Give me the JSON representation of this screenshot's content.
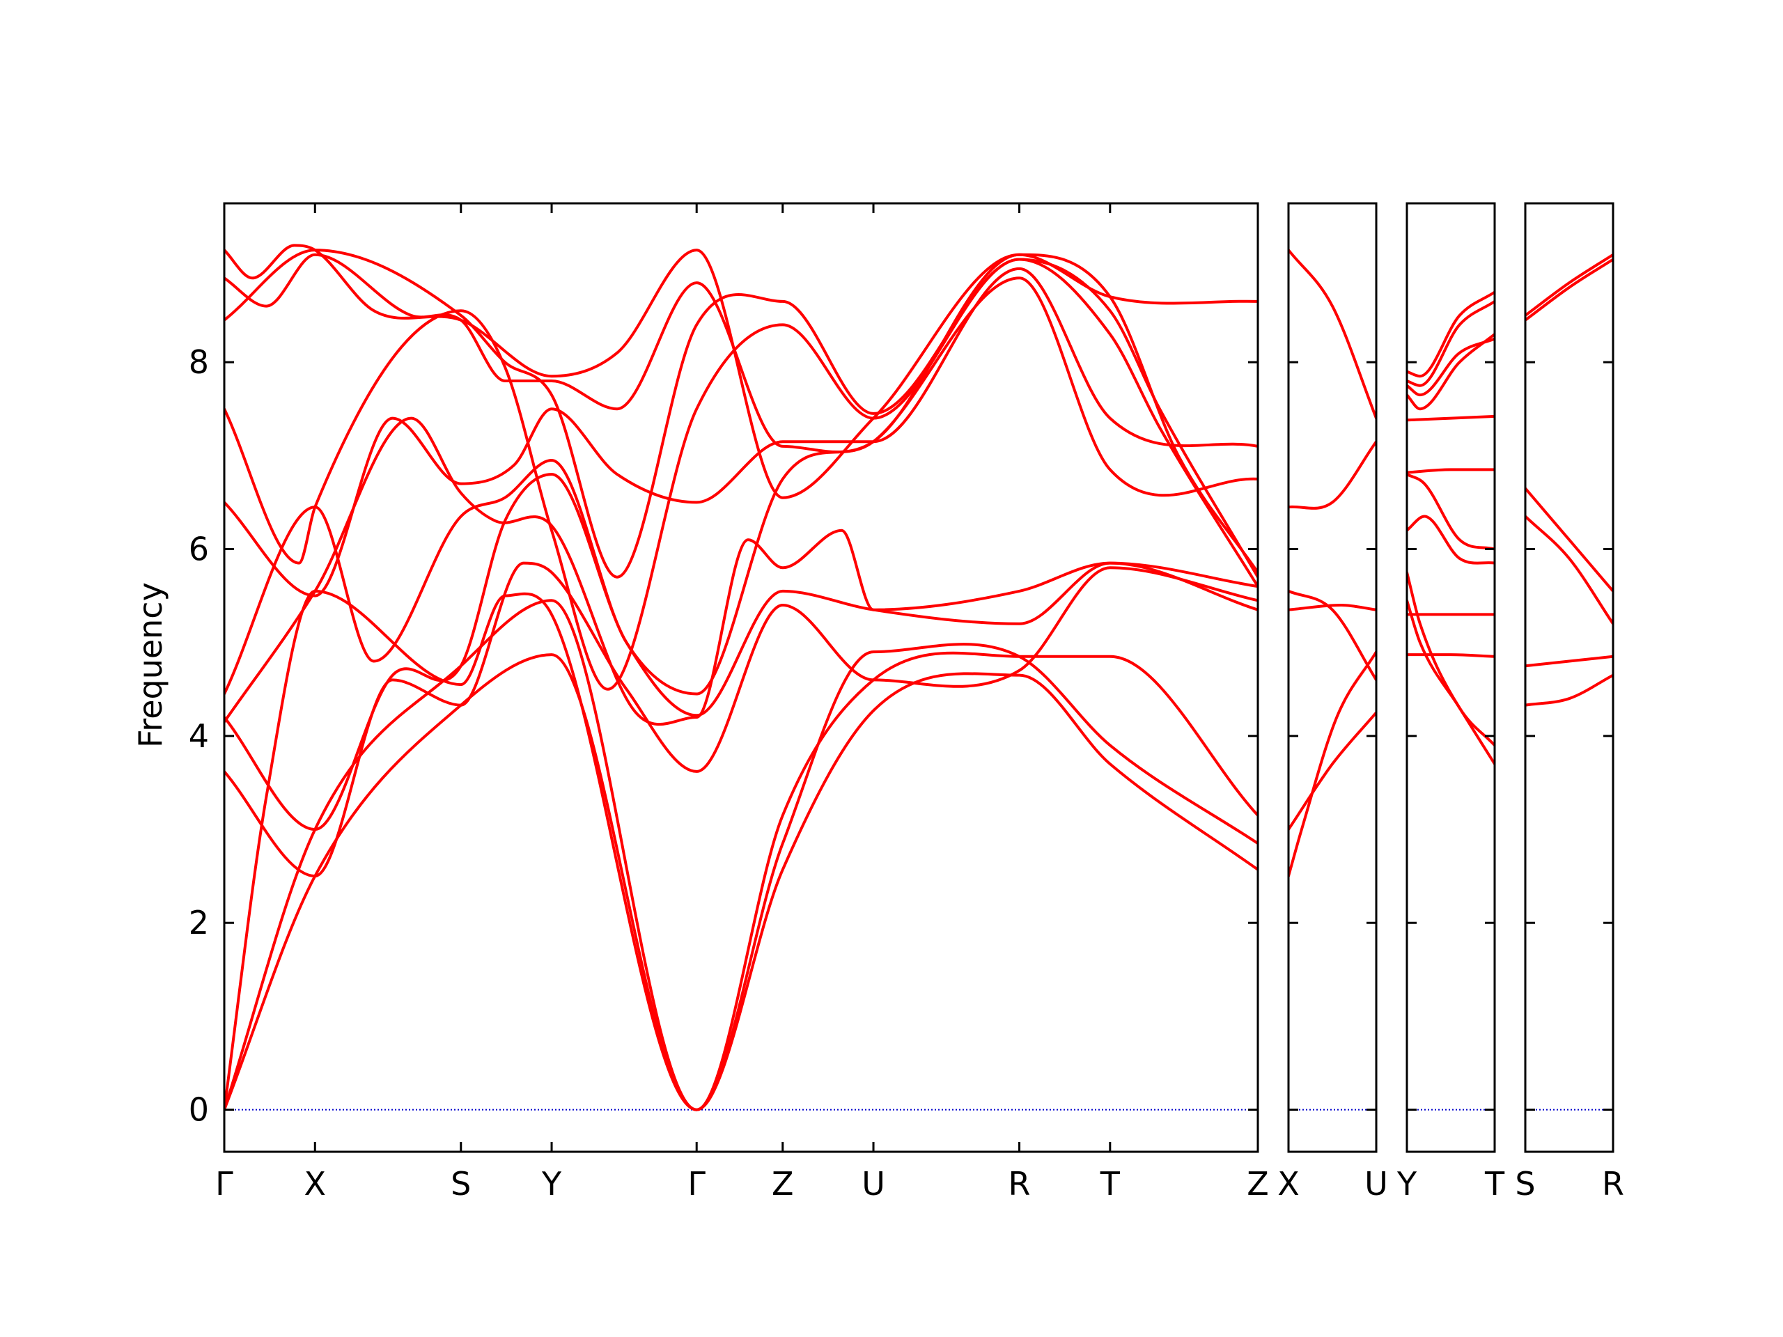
{
  "chart_data": {
    "type": "line",
    "ylabel": "Frequency",
    "ylim": [
      -0.45,
      9.7
    ],
    "yticks": [
      0,
      2,
      4,
      6,
      8
    ],
    "grid": false,
    "colors": {
      "band": "#ff0000",
      "zero_line": "#0000cc",
      "frame": "#000000"
    },
    "panels": [
      {
        "name": "main",
        "xlim": [
          0,
          11.05
        ],
        "xticks": [
          {
            "x": 0,
            "label": "Γ"
          },
          {
            "x": 0.97,
            "label": "X"
          },
          {
            "x": 2.53,
            "label": "S"
          },
          {
            "x": 3.5,
            "label": "Y"
          },
          {
            "x": 5.05,
            "label": "Γ"
          },
          {
            "x": 5.97,
            "label": "Z"
          },
          {
            "x": 6.94,
            "label": "U"
          },
          {
            "x": 8.5,
            "label": "R"
          },
          {
            "x": 9.47,
            "label": "T"
          },
          {
            "x": 11.05,
            "label": "Z"
          }
        ],
        "series": [
          {
            "x": [
              0,
              0.97,
              2.53,
              3.5,
              5.05,
              5.97,
              6.94,
              8.5,
              9.47,
              11.05
            ],
            "y": [
              0,
              2.5,
              4.33,
              4.87,
              0,
              2.57,
              4.27,
              4.65,
              3.7,
              2.57
            ]
          },
          {
            "x": [
              0,
              0.97,
              2.53,
              3.5,
              5.05,
              5.97,
              6.94,
              8.5,
              9.47,
              11.05
            ],
            "y": [
              0,
              3.0,
              4.75,
              5.45,
              0,
              2.85,
              4.9,
              4.85,
              3.9,
              2.85
            ]
          },
          {
            "x": [
              0,
              0.45,
              0.97,
              2.53,
              3.0,
              3.5,
              5.05,
              5.97,
              6.94,
              8.5,
              9.47,
              11.05
            ],
            "y": [
              0,
              3.35,
              5.55,
              4.55,
              5.5,
              5.3,
              0,
              3.15,
              4.6,
              4.85,
              4.85,
              3.15
            ]
          },
          {
            "x": [
              0,
              0.97,
              1.8,
              2.53,
              3.2,
              3.5,
              4.3,
              5.05,
              5.97,
              6.94,
              8.5,
              9.47,
              11.05
            ],
            "y": [
              3.62,
              2.5,
              4.6,
              4.33,
              5.85,
              5.75,
              4.5,
              3.62,
              5.4,
              4.6,
              4.7,
              5.8,
              5.45
            ]
          },
          {
            "x": [
              0,
              0.97,
              1.8,
              2.53,
              3.0,
              3.5,
              4.3,
              5.05,
              5.97,
              6.94,
              8.5,
              9.47,
              11.05
            ],
            "y": [
              4.2,
              3.0,
              4.65,
              4.75,
              6.3,
              6.8,
              5.0,
              4.22,
              5.55,
              5.35,
              5.2,
              5.85,
              5.35
            ]
          },
          {
            "x": [
              0,
              0.97,
              2.0,
              2.53,
              2.9,
              3.5,
              4.4,
              5.05,
              5.6,
              5.97,
              6.6,
              6.94,
              8.5,
              9.47,
              11.05
            ],
            "y": [
              4.15,
              5.55,
              7.4,
              6.6,
              6.3,
              6.25,
              4.25,
              4.2,
              6.1,
              5.8,
              6.2,
              5.35,
              5.55,
              5.85,
              5.6
            ]
          },
          {
            "x": [
              0,
              0.97,
              1.6,
              2.53,
              3.0,
              3.5,
              4.3,
              5.05,
              5.97,
              6.94,
              8.5,
              9.47,
              11.05
            ],
            "y": [
              4.45,
              6.45,
              4.8,
              6.35,
              6.55,
              6.95,
              5.0,
              4.45,
              6.75,
              7.15,
              8.9,
              6.85,
              6.75
            ]
          },
          {
            "x": [
              0,
              0.97,
              1.8,
              2.53,
              3.1,
              3.5,
              4.2,
              5.05,
              5.97,
              6.94,
              8.5,
              9.47,
              11.05
            ],
            "y": [
              6.5,
              5.5,
              7.4,
              6.7,
              6.9,
              7.5,
              6.8,
              6.5,
              7.15,
              7.15,
              9.0,
              7.4,
              7.1
            ]
          },
          {
            "x": [
              0,
              0.8,
              0.97,
              2.53,
              3.0,
              3.5,
              4.1,
              5.05,
              5.97,
              6.94,
              8.5,
              9.47,
              10.0,
              11.05
            ],
            "y": [
              7.5,
              5.85,
              6.45,
              8.55,
              7.95,
              6.2,
              4.5,
              7.5,
              8.4,
              7.4,
              9.1,
              8.3,
              7.3,
              5.6
            ]
          },
          {
            "x": [
              0,
              0.97,
              2.53,
              3.0,
              3.5,
              4.2,
              5.05,
              5.97,
              6.94,
              8.5,
              9.47,
              10.0,
              11.05
            ],
            "y": [
              8.45,
              9.2,
              8.5,
              8.0,
              7.65,
              5.7,
              8.4,
              8.65,
              7.45,
              9.1,
              8.55,
              7.5,
              5.7
            ]
          },
          {
            "x": [
              0,
              0.45,
              0.97,
              2.0,
              2.53,
              3.0,
              3.5,
              4.2,
              5.05,
              5.97,
              6.94,
              8.5,
              9.47,
              11.05
            ],
            "y": [
              8.9,
              8.6,
              9.15,
              8.5,
              8.45,
              7.8,
              7.8,
              7.5,
              8.85,
              7.1,
              7.15,
              9.15,
              8.7,
              8.65
            ]
          },
          {
            "x": [
              0,
              0.3,
              0.75,
              0.97,
              1.6,
              2.53,
              3.5,
              4.2,
              5.05,
              5.97,
              6.94,
              8.5,
              9.47,
              10.2,
              11.05
            ],
            "y": [
              9.2,
              8.9,
              9.25,
              9.2,
              8.55,
              8.45,
              7.85,
              8.1,
              9.2,
              6.55,
              7.4,
              9.15,
              8.7,
              7.0,
              5.75
            ]
          }
        ]
      },
      {
        "name": "X-U",
        "xlim": [
          0,
          1
        ],
        "xticks": [
          {
            "x": 0,
            "label": "X"
          },
          {
            "x": 1,
            "label": "U"
          }
        ],
        "series": [
          {
            "x": [
              0,
              0.15,
              0.55,
              1
            ],
            "y": [
              2.5,
              3.0,
              4.2,
              4.9
            ]
          },
          {
            "x": [
              0,
              0.5,
              1
            ],
            "y": [
              3.0,
              3.7,
              4.25
            ]
          },
          {
            "x": [
              0,
              0.5,
              1
            ],
            "y": [
              5.55,
              5.35,
              4.6
            ]
          },
          {
            "x": [
              0,
              0.6,
              1
            ],
            "y": [
              5.35,
              5.4,
              5.35
            ]
          },
          {
            "x": [
              0,
              0.5,
              1
            ],
            "y": [
              6.45,
              6.5,
              7.15
            ]
          },
          {
            "x": [
              0,
              0.5,
              1
            ],
            "y": [
              9.2,
              8.6,
              7.4
            ]
          }
        ]
      },
      {
        "name": "Y-T",
        "xlim": [
          0,
          1
        ],
        "xticks": [
          {
            "x": 0,
            "label": "Y"
          },
          {
            "x": 1,
            "label": "T"
          }
        ],
        "series": [
          {
            "x": [
              0,
              0.5,
              1
            ],
            "y": [
              4.87,
              4.87,
              4.85
            ]
          },
          {
            "x": [
              0,
              0.5,
              1
            ],
            "y": [
              5.3,
              5.3,
              5.3
            ]
          },
          {
            "x": [
              0,
              0.15,
              0.6,
              1
            ],
            "y": [
              5.45,
              5.0,
              4.3,
              3.7
            ]
          },
          {
            "x": [
              0,
              0.15,
              0.6,
              1
            ],
            "y": [
              5.75,
              5.2,
              4.3,
              3.9
            ]
          },
          {
            "x": [
              0,
              0.2,
              0.6,
              1
            ],
            "y": [
              6.2,
              6.35,
              5.9,
              5.85
            ]
          },
          {
            "x": [
              0,
              0.2,
              0.6,
              1
            ],
            "y": [
              6.8,
              6.7,
              6.1,
              6.0
            ]
          },
          {
            "x": [
              0,
              0.5,
              1
            ],
            "y": [
              6.82,
              6.85,
              6.85
            ]
          },
          {
            "x": [
              0,
              0.5,
              1
            ],
            "y": [
              7.38,
              7.4,
              7.42
            ]
          },
          {
            "x": [
              0,
              0.15,
              0.6,
              1
            ],
            "y": [
              7.65,
              7.5,
              8.0,
              8.3
            ]
          },
          {
            "x": [
              0,
              0.15,
              0.6,
              1
            ],
            "y": [
              7.75,
              7.65,
              8.1,
              8.25
            ]
          },
          {
            "x": [
              0,
              0.15,
              0.6,
              1
            ],
            "y": [
              7.8,
              7.75,
              8.4,
              8.65
            ]
          },
          {
            "x": [
              0,
              0.15,
              0.6,
              1
            ],
            "y": [
              7.9,
              7.85,
              8.5,
              8.75
            ]
          }
        ]
      },
      {
        "name": "S-R",
        "xlim": [
          0,
          1
        ],
        "xticks": [
          {
            "x": 0,
            "label": "S"
          },
          {
            "x": 1,
            "label": "R"
          }
        ],
        "series": [
          {
            "x": [
              0,
              0.5,
              1
            ],
            "y": [
              4.33,
              4.4,
              4.65
            ]
          },
          {
            "x": [
              0,
              0.5,
              1
            ],
            "y": [
              4.75,
              4.8,
              4.85
            ]
          },
          {
            "x": [
              0,
              0.5,
              1
            ],
            "y": [
              6.35,
              5.9,
              5.2
            ]
          },
          {
            "x": [
              0,
              0.5,
              1
            ],
            "y": [
              6.65,
              6.1,
              5.55
            ]
          },
          {
            "x": [
              0,
              0.5,
              1
            ],
            "y": [
              8.45,
              8.8,
              9.1
            ]
          },
          {
            "x": [
              0,
              0.5,
              1
            ],
            "y": [
              8.5,
              8.85,
              9.15
            ]
          }
        ]
      }
    ]
  }
}
